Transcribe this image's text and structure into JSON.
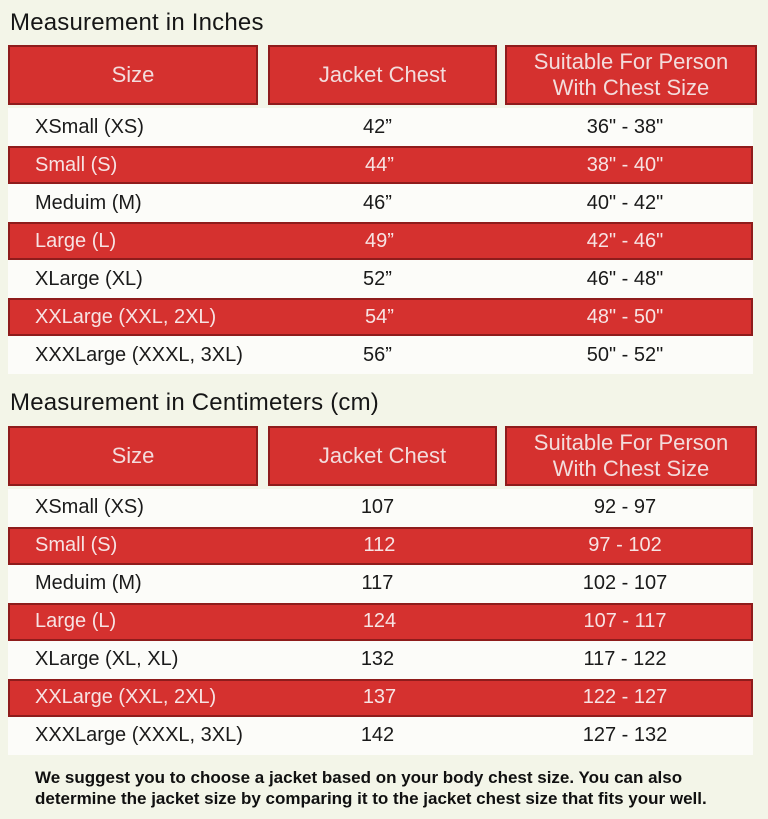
{
  "colors": {
    "row_red": "#d5312f",
    "row_red_border": "#8e1c1c",
    "header_text": "#f3dcdc",
    "body_text": "#1a1a1a",
    "page_bg": "#f3f5e8",
    "row_white": "#fcfcf9"
  },
  "tables": [
    {
      "title": "Measurement in Inches",
      "headers": [
        "Size",
        "Jacket Chest",
        "Suitable For Person With Chest Size"
      ],
      "rows": [
        {
          "size": "XSmall (XS)",
          "chest": "42”",
          "suitable": "36\" - 38\"",
          "highlight": false
        },
        {
          "size": "Small (S)",
          "chest": "44”",
          "suitable": "38\" - 40\"",
          "highlight": true
        },
        {
          "size": "Meduim (M)",
          "chest": "46”",
          "suitable": "40\" - 42\"",
          "highlight": false
        },
        {
          "size": "Large (L)",
          "chest": "49”",
          "suitable": "42\" - 46\"",
          "highlight": true
        },
        {
          "size": "XLarge (XL)",
          "chest": "52”",
          "suitable": "46\" - 48\"",
          "highlight": false
        },
        {
          "size": "XXLarge (XXL, 2XL)",
          "chest": "54”",
          "suitable": "48\" - 50\"",
          "highlight": true
        },
        {
          "size": "XXXLarge (XXXL, 3XL)",
          "chest": "56”",
          "suitable": "50\" - 52\"",
          "highlight": false
        }
      ]
    },
    {
      "title": "Measurement in Centimeters (cm)",
      "headers": [
        "Size",
        "Jacket Chest",
        "Suitable For Person With Chest Size"
      ],
      "rows": [
        {
          "size": "XSmall (XS)",
          "chest": "107",
          "suitable": "92 - 97",
          "highlight": false
        },
        {
          "size": "Small (S)",
          "chest": "112",
          "suitable": "97 - 102",
          "highlight": true
        },
        {
          "size": "Meduim (M)",
          "chest": "117",
          "suitable": "102 - 107",
          "highlight": false
        },
        {
          "size": "Large (L)",
          "chest": "124",
          "suitable": "107 - 117",
          "highlight": true
        },
        {
          "size": "XLarge (XL, XL)",
          "chest": "132",
          "suitable": "117 - 122",
          "highlight": false
        },
        {
          "size": "XXLarge (XXL, 2XL)",
          "chest": "137",
          "suitable": "122 - 127",
          "highlight": true
        },
        {
          "size": "XXXLarge (XXXL, 3XL)",
          "chest": "142",
          "suitable": "127 - 132",
          "highlight": false
        }
      ]
    }
  ],
  "footer": {
    "lines": [
      "We suggest you to choose a jacket based on your body chest size. You can also",
      "determine the jacket size by comparing it to the jacket chest size that fits your well."
    ]
  }
}
